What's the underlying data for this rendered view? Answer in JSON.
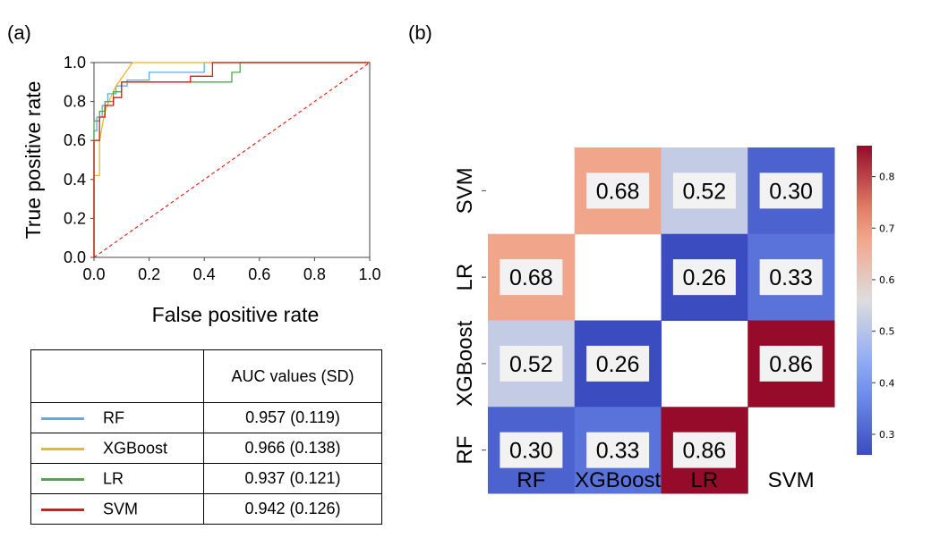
{
  "panel_a_label": "(a)",
  "panel_b_label": "(b)",
  "table": {
    "header": "AUC values (SD)",
    "rows": [
      {
        "model": "RF",
        "auc": "0.957 (0.119)",
        "color": "#5DADE2"
      },
      {
        "model": "XGBoost",
        "auc": "0.966 (0.138)",
        "color": "#F0B429"
      },
      {
        "model": "LR",
        "auc": "0.937 (0.121)",
        "color": "#4EA84A"
      },
      {
        "model": "SVM",
        "auc": "0.942 (0.126)",
        "color": "#E3170D"
      }
    ]
  },
  "chart_data": [
    {
      "type": "line",
      "xlabel": "False positive rate",
      "ylabel": "True positive rate",
      "xlim": [
        0,
        1
      ],
      "ylim": [
        0,
        1
      ],
      "xticks": [
        "0.0",
        "0.2",
        "0.4",
        "0.6",
        "0.8",
        "1.0"
      ],
      "yticks": [
        "0.0",
        "0.2",
        "0.4",
        "0.6",
        "0.8",
        "1.0"
      ],
      "series": [
        {
          "name": "RF",
          "color": "#5DADE2",
          "x": [
            0,
            0,
            0.01,
            0.01,
            0.03,
            0.03,
            0.05,
            0.05,
            0.08,
            0.08,
            0.12,
            0.12,
            0.2,
            0.2,
            0.4,
            0.4,
            1.0
          ],
          "y": [
            0,
            0.65,
            0.65,
            0.72,
            0.72,
            0.78,
            0.78,
            0.84,
            0.84,
            0.88,
            0.88,
            0.91,
            0.91,
            0.95,
            0.95,
            1.0,
            1.0
          ]
        },
        {
          "name": "XGBoost",
          "color": "#F0B429",
          "x": [
            0,
            0,
            0.01,
            0.02,
            0.02,
            0.04,
            0.06,
            0.08,
            0.1,
            0.12,
            0.13,
            0.14,
            1.0
          ],
          "y": [
            0,
            0.42,
            0.42,
            0.42,
            0.6,
            0.75,
            0.82,
            0.88,
            0.92,
            0.96,
            0.98,
            1.0,
            1.0
          ]
        },
        {
          "name": "LR",
          "color": "#4EA84A",
          "x": [
            0,
            0,
            0.02,
            0.02,
            0.04,
            0.04,
            0.07,
            0.07,
            0.1,
            0.1,
            0.5,
            0.5,
            0.53,
            0.53,
            1.0
          ],
          "y": [
            0,
            0.7,
            0.7,
            0.75,
            0.75,
            0.8,
            0.8,
            0.85,
            0.85,
            0.9,
            0.9,
            0.95,
            0.95,
            1.0,
            1.0
          ]
        },
        {
          "name": "SVM",
          "color": "#E3170D",
          "x": [
            0,
            0,
            0.02,
            0.02,
            0.04,
            0.04,
            0.07,
            0.07,
            0.1,
            0.1,
            0.35,
            0.35,
            0.43,
            0.43,
            1.0
          ],
          "y": [
            0,
            0.6,
            0.6,
            0.72,
            0.72,
            0.78,
            0.78,
            0.82,
            0.82,
            0.9,
            0.9,
            0.93,
            0.93,
            1.0,
            1.0
          ]
        },
        {
          "name": "",
          "color": "#E3170D",
          "dashed": true,
          "x": [
            0,
            1
          ],
          "y": [
            0,
            1
          ]
        }
      ]
    },
    {
      "type": "heatmap",
      "x_categories": [
        "RF",
        "XGBoost",
        "LR",
        "SVM"
      ],
      "y_categories": [
        "SVM",
        "LR",
        "XGBoost",
        "RF"
      ],
      "values": [
        [
          null,
          0.68,
          0.52,
          0.3
        ],
        [
          0.68,
          null,
          0.26,
          0.33
        ],
        [
          0.52,
          0.26,
          null,
          0.86
        ],
        [
          0.3,
          0.33,
          0.86,
          null
        ]
      ],
      "labels": [
        [
          "",
          "0.68",
          "0.52",
          "0.30"
        ],
        [
          "0.68",
          "",
          "0.26",
          "0.33"
        ],
        [
          "0.52",
          "0.26",
          "",
          "0.86"
        ],
        [
          "0.30",
          "0.33",
          "0.86",
          ""
        ]
      ],
      "colorbar": {
        "min": 0.26,
        "max": 0.86,
        "ticks": [
          "0.3",
          "0.4",
          "0.5",
          "0.6",
          "0.7",
          "0.8"
        ],
        "tick_values": [
          0.3,
          0.4,
          0.5,
          0.6,
          0.7,
          0.8
        ],
        "colormap": "coolwarm"
      }
    }
  ]
}
